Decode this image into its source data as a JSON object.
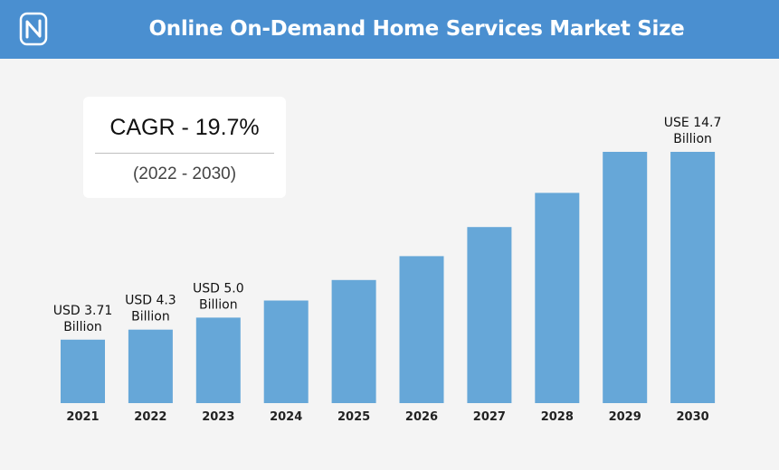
{
  "header": {
    "title": "Online On-Demand Home Services Market Size",
    "logo_icon": "n-logo-icon"
  },
  "cagr": {
    "value_text": "CAGR - 19.7%",
    "period_text": "(2022 - 2030)"
  },
  "colors": {
    "header_bg": "#4a8fd0",
    "bar": "#66a7d8",
    "background": "#f4f4f4"
  },
  "chart_data": {
    "type": "bar",
    "title": "Online On-Demand Home Services Market Size",
    "categories": [
      "2021",
      "2022",
      "2023",
      "2024",
      "2025",
      "2026",
      "2027",
      "2028",
      "2029",
      "2030"
    ],
    "values": [
      3.71,
      4.3,
      5.0,
      6.0,
      7.2,
      8.6,
      10.3,
      12.3,
      14.7,
      14.7
    ],
    "data_labels": [
      {
        "index": 0,
        "lines": [
          "USD 3.71",
          "Billion"
        ]
      },
      {
        "index": 1,
        "lines": [
          "USD 4.3",
          "Billion"
        ]
      },
      {
        "index": 2,
        "lines": [
          "USD 5.0",
          "Billion"
        ]
      },
      {
        "index": 9,
        "lines": [
          "USE 14.7",
          "Billion"
        ]
      }
    ],
    "xlabel": "",
    "ylabel": "",
    "grid": false,
    "legend": "none"
  }
}
